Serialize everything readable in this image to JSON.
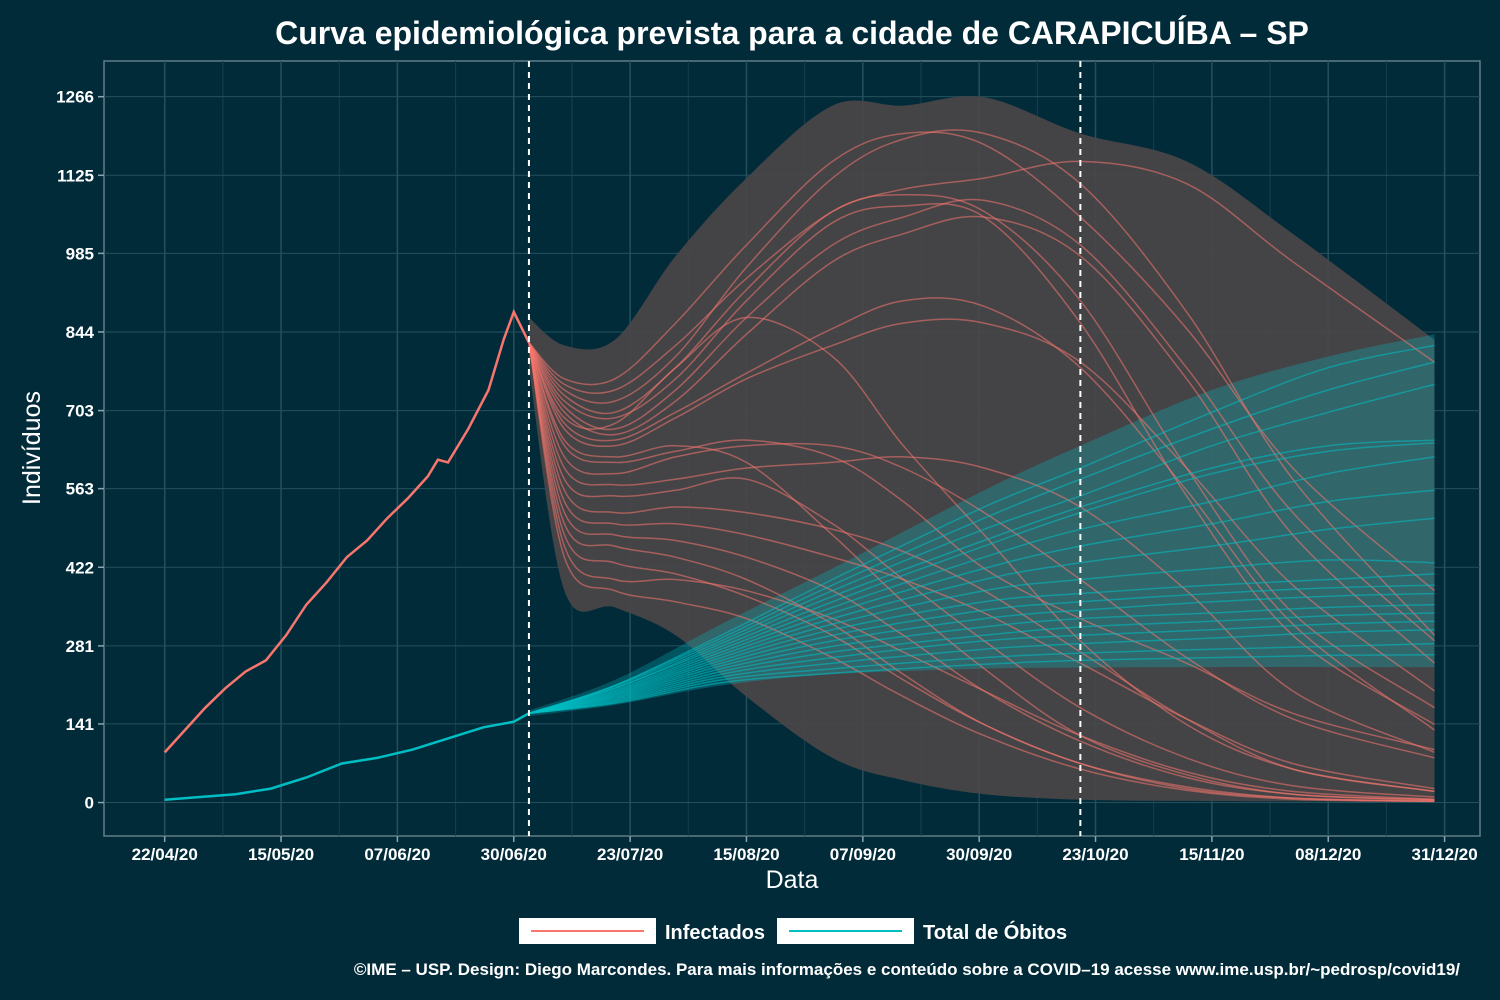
{
  "chart_data": {
    "type": "line",
    "title": "Curva epidemiológica prevista para a cidade de CARAPICUÍBA – SP",
    "xlabel": "Data",
    "ylabel": "Indivíduos",
    "x_ticks": [
      "22/04/20",
      "15/05/20",
      "07/06/20",
      "30/06/20",
      "23/07/20",
      "15/08/20",
      "07/09/20",
      "30/09/20",
      "23/10/20",
      "15/11/20",
      "08/12/20",
      "31/12/20"
    ],
    "y_ticks": [
      "0",
      "141",
      "281",
      "422",
      "563",
      "703",
      "844",
      "985",
      "1125",
      "1266"
    ],
    "ylim": [
      -60,
      1330
    ],
    "xlim": [
      "2020-04-10",
      "2021-01-07"
    ],
    "vlines": [
      "2020-07-03",
      "2020-10-20"
    ],
    "grid": true,
    "legend_position": "bottom",
    "colors": {
      "infectados": "#f8766d",
      "obitos": "#00bfc4",
      "band": "#4a4649",
      "background": "#022b3a"
    },
    "series": [
      {
        "name": "Infectados",
        "observed": {
          "x": [
            "2020-04-22",
            "2020-04-26",
            "2020-04-30",
            "2020-05-04",
            "2020-05-08",
            "2020-05-12",
            "2020-05-16",
            "2020-05-20",
            "2020-05-24",
            "2020-05-28",
            "2020-06-01",
            "2020-06-05",
            "2020-06-09",
            "2020-06-13",
            "2020-06-15",
            "2020-06-17",
            "2020-06-21",
            "2020-06-25",
            "2020-06-28",
            "2020-06-30",
            "2020-07-03"
          ],
          "y": [
            90,
            130,
            170,
            205,
            235,
            255,
            300,
            355,
            395,
            440,
            470,
            510,
            545,
            585,
            615,
            610,
            670,
            740,
            830,
            880,
            825
          ]
        },
        "projections": {
          "x": [
            "2020-07-03",
            "2020-07-10",
            "2020-07-20",
            "2020-08-01",
            "2020-08-15",
            "2020-09-01",
            "2020-09-15",
            "2020-10-01",
            "2020-10-20",
            "2020-11-10",
            "2020-12-01",
            "2020-12-29"
          ],
          "curves": [
            [
              825,
              760,
              760,
              860,
              1000,
              1150,
              1200,
              1180,
              1050,
              850,
              600,
              380
            ],
            [
              825,
              740,
              720,
              800,
              960,
              1120,
              1190,
              1200,
              1110,
              880,
              580,
              300
            ],
            [
              825,
              750,
              740,
              820,
              940,
              1060,
              1100,
              1120,
              1150,
              1110,
              970,
              790
            ],
            [
              825,
              730,
              700,
              780,
              920,
              1060,
              1090,
              1060,
              900,
              600,
              340,
              170
            ],
            [
              825,
              720,
              690,
              760,
              900,
              1040,
              1070,
              1050,
              860,
              550,
              300,
              140
            ],
            [
              825,
              710,
              670,
              740,
              870,
              1000,
              1050,
              1080,
              1000,
              780,
              520,
              290
            ],
            [
              825,
              700,
              660,
              720,
              840,
              970,
              1020,
              1050,
              980,
              760,
              480,
              250
            ],
            [
              825,
              690,
              680,
              780,
              870,
              800,
              640,
              480,
              290,
              140,
              60,
              20
            ],
            [
              825,
              680,
              650,
              700,
              770,
              850,
              900,
              890,
              780,
              560,
              320,
              130
            ],
            [
              825,
              670,
              640,
              690,
              760,
              820,
              860,
              860,
              790,
              600,
              390,
              200
            ],
            [
              825,
              650,
              620,
              640,
              610,
              480,
              360,
              240,
              120,
              50,
              15,
              5
            ],
            [
              825,
              640,
              610,
              630,
              650,
              620,
              540,
              420,
              330,
              250,
              160,
              95
            ],
            [
              825,
              620,
              590,
              620,
              640,
              640,
              600,
              520,
              400,
              260,
              150,
              80
            ],
            [
              825,
              600,
              570,
              580,
              600,
              610,
              620,
              600,
              530,
              380,
              200,
              90
            ],
            [
              825,
              580,
              550,
              560,
              580,
              500,
              400,
              290,
              170,
              80,
              30,
              10
            ],
            [
              825,
              560,
              520,
              530,
              520,
              490,
              450,
              380,
              270,
              150,
              60,
              20
            ],
            [
              825,
              540,
              500,
              500,
              480,
              440,
              400,
              340,
              250,
              150,
              70,
              25
            ],
            [
              825,
              520,
              480,
              470,
              440,
              380,
              300,
              200,
              110,
              45,
              15,
              5
            ],
            [
              825,
              500,
              460,
              440,
              400,
              320,
              230,
              140,
              70,
              25,
              8,
              3
            ],
            [
              825,
              480,
              430,
              410,
              370,
              300,
              220,
              140,
              70,
              28,
              8,
              2
            ],
            [
              825,
              460,
              400,
              400,
              380,
              330,
              270,
              200,
              120,
              55,
              20,
              6
            ],
            [
              825,
              440,
              380,
              360,
              330,
              260,
              190,
              120,
              60,
              22,
              6,
              2
            ]
          ],
          "band_upper": [
            870,
            820,
            830,
            980,
            1120,
            1250,
            1250,
            1265,
            1200,
            1150,
            1020,
            830
          ],
          "band_lower": [
            780,
            380,
            350,
            300,
            190,
            80,
            40,
            15,
            5,
            3,
            2,
            1
          ]
        }
      },
      {
        "name": "Total de Óbitos",
        "observed": {
          "x": [
            "2020-04-22",
            "2020-04-29",
            "2020-05-06",
            "2020-05-13",
            "2020-05-20",
            "2020-05-27",
            "2020-06-03",
            "2020-06-10",
            "2020-06-17",
            "2020-06-24",
            "2020-06-30",
            "2020-07-03"
          ],
          "y": [
            5,
            10,
            15,
            25,
            45,
            70,
            80,
            95,
            115,
            135,
            145,
            160
          ]
        },
        "projections": {
          "x": [
            "2020-07-03",
            "2020-07-20",
            "2020-08-10",
            "2020-09-01",
            "2020-10-01",
            "2020-10-20",
            "2020-11-15",
            "2020-12-08",
            "2020-12-29"
          ],
          "curves": [
            [
              160,
              210,
              300,
              400,
              530,
              600,
              700,
              780,
              820
            ],
            [
              160,
              210,
              295,
              390,
              510,
              580,
              670,
              740,
              790
            ],
            [
              160,
              208,
              290,
              380,
              490,
              550,
              640,
              700,
              750
            ],
            [
              160,
              205,
              285,
              370,
              470,
              530,
              600,
              640,
              650
            ],
            [
              160,
              205,
              280,
              360,
              460,
              520,
              590,
              630,
              645
            ],
            [
              160,
              202,
              275,
              350,
              440,
              490,
              540,
              590,
              620
            ],
            [
              160,
              200,
              270,
              340,
              420,
              460,
              500,
              540,
              560
            ],
            [
              160,
              198,
              265,
              330,
              400,
              430,
              460,
              490,
              510
            ],
            [
              160,
              196,
              260,
              320,
              380,
              400,
              420,
              435,
              430
            ],
            [
              160,
              194,
              255,
              310,
              360,
              375,
              390,
              400,
              410
            ],
            [
              160,
              192,
              250,
              300,
              345,
              360,
              375,
              385,
              390
            ],
            [
              160,
              190,
              245,
              290,
              330,
              345,
              360,
              370,
              375
            ],
            [
              160,
              188,
              240,
              280,
              315,
              330,
              340,
              350,
              355
            ],
            [
              160,
              186,
              235,
              270,
              300,
              315,
              325,
              335,
              340
            ],
            [
              160,
              184,
              230,
              260,
              290,
              300,
              310,
              320,
              325
            ],
            [
              160,
              182,
              225,
              250,
              275,
              285,
              295,
              305,
              310
            ],
            [
              160,
              180,
              220,
              240,
              260,
              268,
              275,
              280,
              285
            ],
            [
              160,
              178,
              215,
              232,
              248,
              255,
              260,
              264,
              265
            ]
          ],
          "band_upper": [
            165,
            220,
            320,
            420,
            560,
            640,
            740,
            800,
            840
          ],
          "band_lower": [
            155,
            175,
            210,
            230,
            240,
            242,
            243,
            243,
            243
          ]
        }
      }
    ]
  },
  "legend": {
    "infectados_label": "Infectados",
    "obitos_label": "Total de Óbitos"
  },
  "caption": "©IME – USP. Design: Diego Marcondes. Para mais informações e conteúdo sobre a COVID–19 acesse www.ime.usp.br/~pedrosp/covid19/"
}
